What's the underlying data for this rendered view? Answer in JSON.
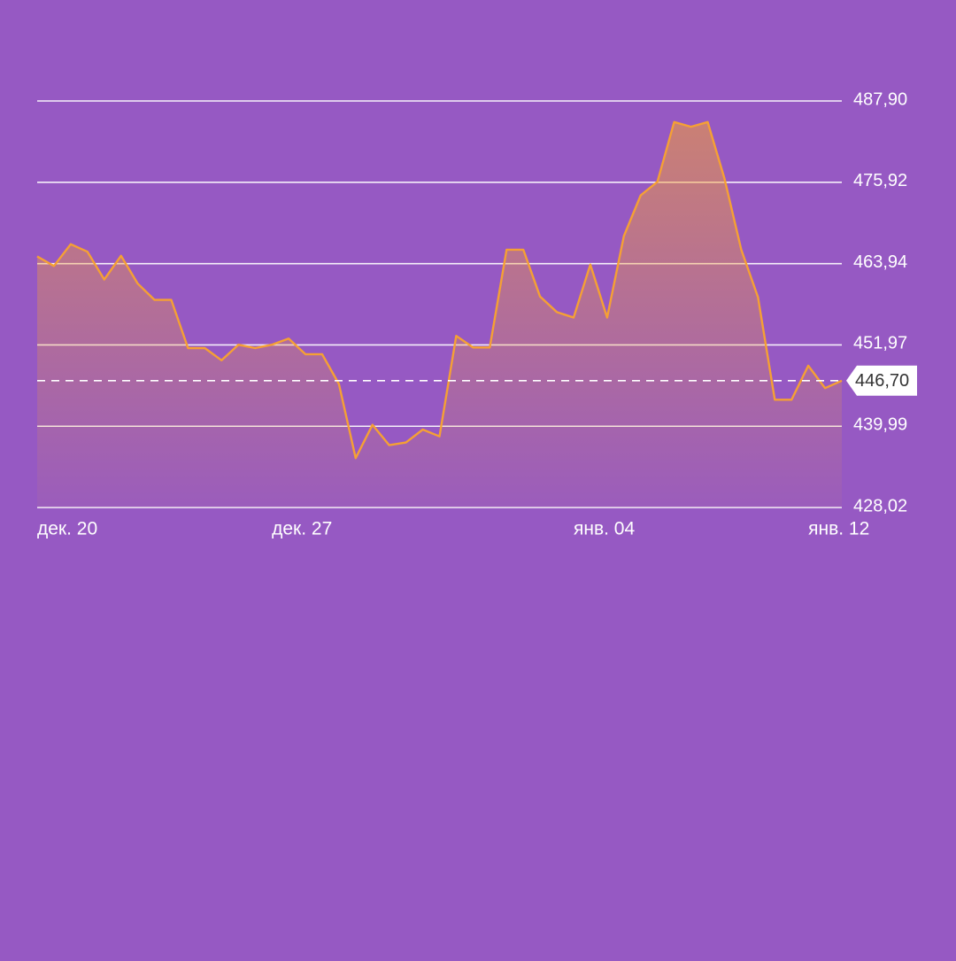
{
  "chart_data": {
    "type": "area",
    "title": "",
    "xlabel": "",
    "ylabel": "",
    "ylim": [
      428.02,
      487.9
    ],
    "y_ticks": [
      428.02,
      439.99,
      451.97,
      463.94,
      475.92,
      487.9
    ],
    "y_tick_labels": [
      "428,02",
      "439,99",
      "451,97",
      "463,94",
      "475,92",
      "487,90"
    ],
    "x_ticks": [
      {
        "label": "дек. 20",
        "index": 0
      },
      {
        "label": "дек. 27",
        "index": 14
      },
      {
        "label": "янв. 04",
        "index": 32
      },
      {
        "label": "янв. 12",
        "index": 46
      }
    ],
    "current_value": 446.7,
    "current_value_label": "446,70",
    "grid": true,
    "colors": {
      "background": "#9659c3",
      "line": "#f5a034",
      "fill_top": "#f5a034",
      "grid": "#ffffff",
      "badge_bg": "#ffffff",
      "badge_text": "#333333"
    },
    "series": [
      {
        "values": [
          465.0,
          463.6,
          466.8,
          465.7,
          461.6,
          465.1,
          461.0,
          458.6,
          458.6,
          451.5,
          451.5,
          449.7,
          452.0,
          451.5,
          452.0,
          452.9,
          450.6,
          450.6,
          446.2,
          435.3,
          440.2,
          437.2,
          437.6,
          439.5,
          438.5,
          453.3,
          451.6,
          451.6,
          466.0,
          466.0,
          459.1,
          456.8,
          456.0,
          463.8,
          456.0,
          468.0,
          474.0,
          476.0,
          484.8,
          484.1,
          484.8,
          476.5,
          466.0,
          459.0,
          443.9,
          443.9,
          448.9,
          445.6,
          446.7
        ]
      }
    ]
  }
}
